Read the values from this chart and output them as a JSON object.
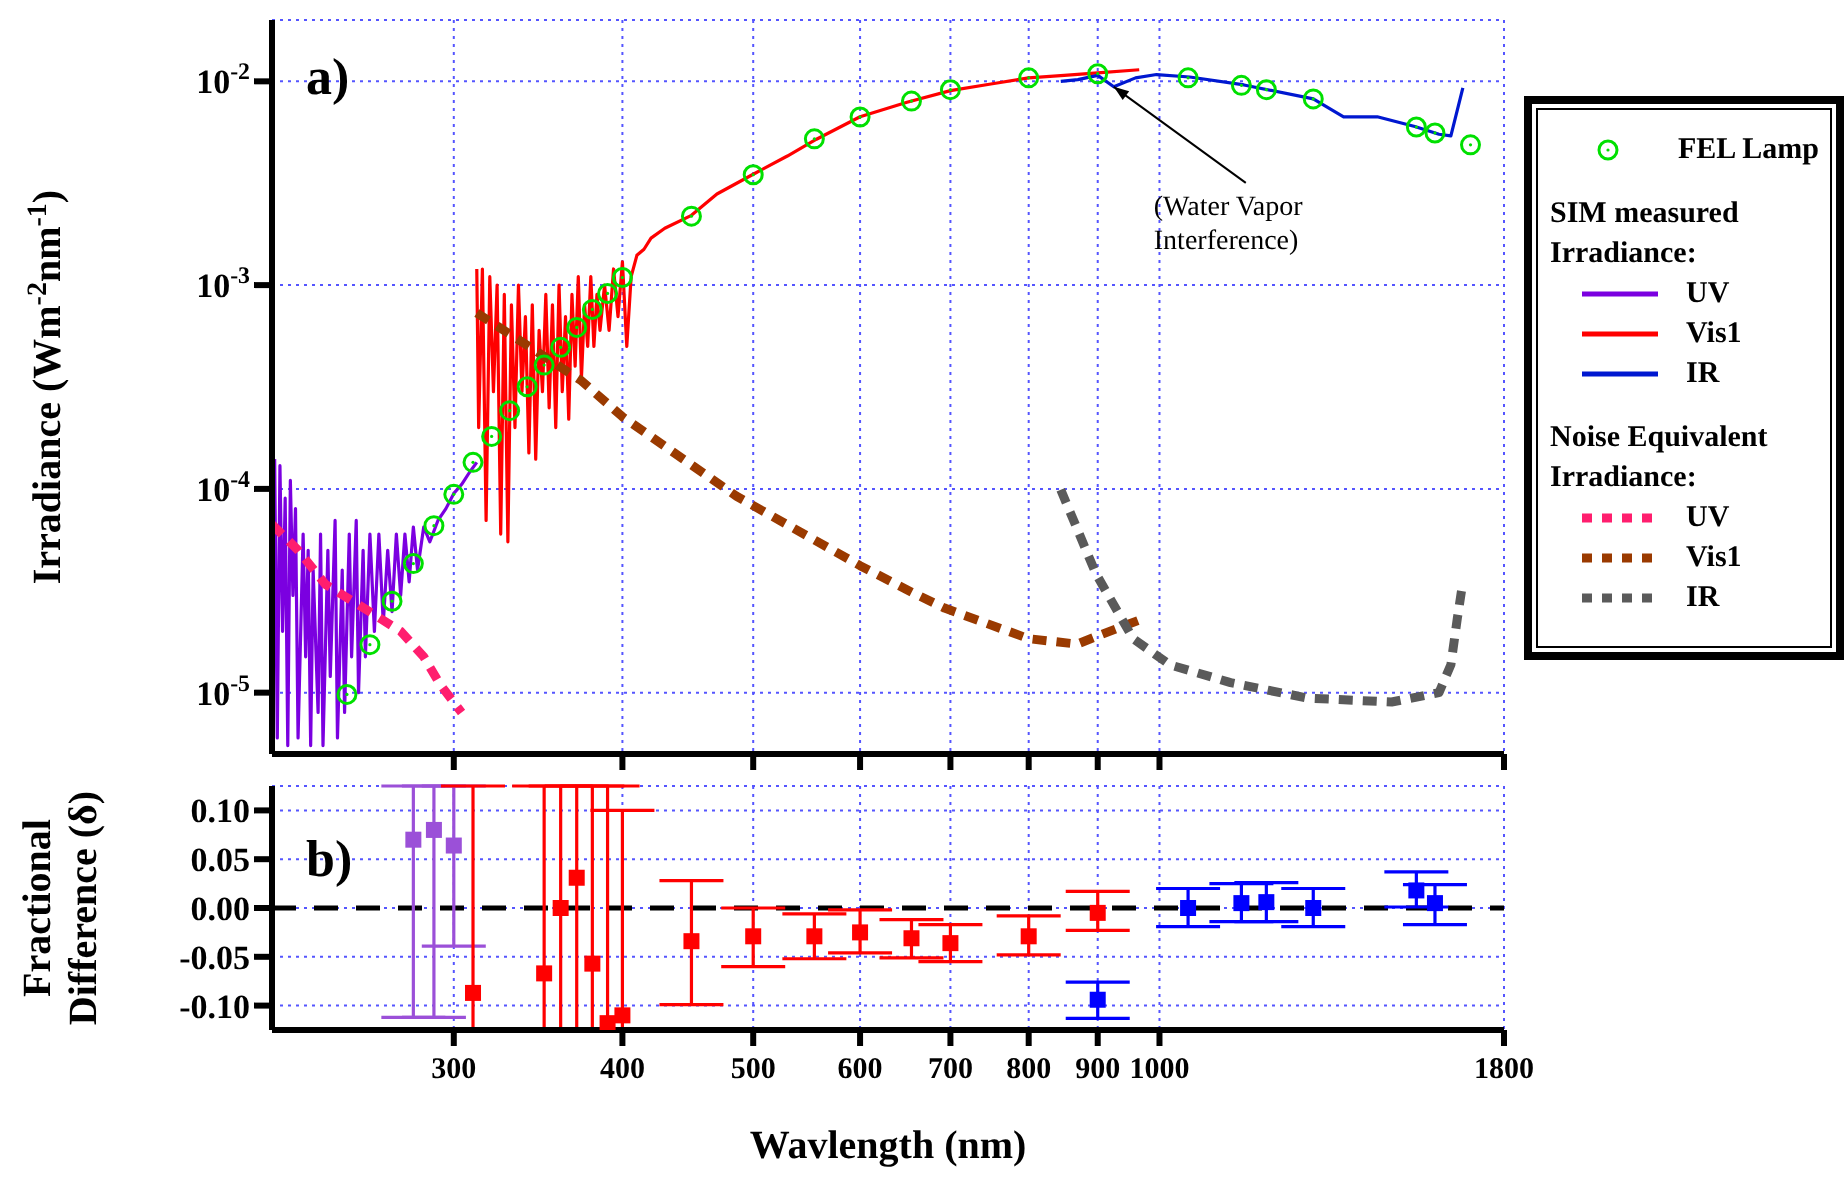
{
  "chart_data": [
    {
      "type": "line",
      "title": "a)",
      "ylabel": "Irradiance (Wm$^{-2}$nm$^{-1}$)",
      "log": "xy",
      "grid": true,
      "legend": "right",
      "tick_labels": "y",
      "xlim": [
        220,
        1800
      ],
      "xticks": [
        300,
        400,
        500,
        600,
        700,
        800,
        900,
        1000,
        1800
      ],
      "ylim": [
        5e-06,
        0.02
      ],
      "yticks": [
        {
          "value": 1e-05,
          "label": "10$^{-5}$"
        },
        {
          "value": 0.0001,
          "label": "10$^{-4}$"
        },
        {
          "value": 0.001,
          "label": "10$^{-3}$"
        },
        {
          "value": 0.01,
          "label": "10$^{-2}$"
        }
      ],
      "annotations": [
        {
          "text": "(Water Vapor\nInterference)",
          "x": 925,
          "y": 0.0094
        },
        "SIM measured\nIrradiance:",
        "Noise Equivalent\nIrradiance:"
      ],
      "series": [
        {
          "name": "FEL Lamp",
          "type": "scatter",
          "marker": "circle",
          "color": "#00e000",
          "x": [
            250,
            260,
            270,
            280,
            290,
            300,
            310,
            320,
            330,
            340,
            350,
            360,
            370,
            380,
            390,
            400,
            450,
            500,
            555,
            600,
            655,
            700,
            800,
            900,
            1050,
            1150,
            1200,
            1300,
            1550,
            1600,
            1700
          ],
          "values": [
            9.8e-06,
            1.72e-05,
            2.81e-05,
            4.3e-05,
            6.6e-05,
            9.4e-05,
            0.000135,
            0.000181,
            0.000242,
            0.000317,
            0.000405,
            0.000495,
            0.00062,
            0.00076,
            0.00091,
            0.00109,
            0.00218,
            0.00348,
            0.00522,
            0.00668,
            0.008,
            0.0091,
            0.0104,
            0.0109,
            0.0104,
            0.00956,
            0.0091,
            0.0082,
            0.00597,
            0.00558,
            0.00488
          ]
        },
        {
          "name": "UV",
          "color": "#7b00e0",
          "line_style": "solid",
          "x": [
            221,
            222,
            223,
            224,
            225,
            226,
            227,
            228,
            229,
            230,
            232,
            233,
            234,
            235,
            236,
            238,
            239,
            240,
            242,
            243,
            245,
            246,
            248,
            249,
            251,
            252,
            254,
            255,
            257,
            258,
            260,
            262,
            264,
            266,
            268,
            270,
            272,
            274,
            276,
            278,
            280,
            282,
            285,
            288,
            292,
            296,
            300,
            304,
            308,
            312
          ],
          "values": [
            0.00014,
            6e-06,
            0.00013,
            2e-05,
            9e-05,
            5.5e-06,
            0.00011,
            3e-05,
            8e-05,
            6e-06,
            6e-05,
            1.5e-05,
            5e-05,
            5.5e-06,
            4e-05,
            8e-06,
            6e-05,
            5.5e-06,
            5e-05,
            1.2e-05,
            7e-05,
            6e-06,
            4e-05,
            8e-06,
            6e-05,
            1.5e-05,
            7e-05,
            1e-05,
            5e-05,
            1.5e-05,
            6e-05,
            2e-05,
            6e-05,
            2.2e-05,
            5e-05,
            2.5e-05,
            6e-05,
            3e-05,
            6e-05,
            3.5e-05,
            6.5e-05,
            4e-05,
            6.5e-05,
            5.5e-05,
            7e-05,
            8e-05,
            9.5e-05,
            0.000105,
            0.00012,
            0.000135
          ]
        },
        {
          "name": "Vis1",
          "color": "#ff0000",
          "line_style": "solid",
          "x": [
            312,
            313,
            315,
            317,
            319,
            321,
            323,
            325,
            327,
            329,
            331,
            333,
            335,
            337,
            339,
            341,
            343,
            345,
            347,
            349,
            351,
            353,
            355,
            357,
            359,
            361,
            363,
            365,
            367,
            369,
            371,
            373,
            375,
            377,
            379,
            381,
            383,
            385,
            388,
            391,
            394,
            397,
            400,
            403,
            406,
            410,
            415,
            420,
            430,
            450,
            470,
            500,
            530,
            557,
            600,
            650,
            700,
            750,
            800,
            850,
            900,
            966
          ],
          "values": [
            0.0012,
            0.0002,
            0.0012,
            7e-05,
            0.0011,
            0.0003,
            0.001,
            6e-05,
            0.0009,
            5.5e-05,
            0.0008,
            0.0002,
            0.001,
            0.0003,
            0.0007,
            0.00015,
            0.0008,
            0.00014,
            0.0006,
            0.0003,
            0.0009,
            0.00025,
            0.0008,
            0.0002,
            0.001,
            0.0003,
            0.0007,
            0.00022,
            0.0009,
            0.0004,
            0.0011,
            0.00035,
            0.0008,
            0.0005,
            0.0011,
            0.0005,
            0.0009,
            0.0006,
            0.001,
            0.0006,
            0.0012,
            0.0007,
            0.0013,
            0.0005,
            0.0011,
            0.0014,
            0.0015,
            0.0017,
            0.0019,
            0.0022,
            0.0028,
            0.0035,
            0.0043,
            0.0052,
            0.0067,
            0.0079,
            0.009,
            0.0097,
            0.0104,
            0.0107,
            0.011,
            0.0114
          ]
        },
        {
          "name": "IR",
          "color": "#0018d0",
          "line_style": "solid",
          "x": [
            845,
            870,
            900,
            925,
            960,
            995,
            1053,
            1155,
            1300,
            1369,
            1450,
            1546,
            1611,
            1644,
            1678
          ],
          "values": [
            0.01,
            0.0102,
            0.0107,
            0.0094,
            0.0104,
            0.0108,
            0.0105,
            0.0096,
            0.0082,
            0.0067,
            0.0067,
            0.006,
            0.0055,
            0.0054,
            0.0093
          ]
        },
        {
          "name": "UV",
          "color": "#ff1e6e",
          "line_style": "dashed",
          "x": [
            220,
            230,
            241,
            255,
            265,
            274,
            285,
            293,
            304
          ],
          "values": [
            6.7e-05,
            5e-05,
            3.4e-05,
            2.7e-05,
            2.3e-05,
            2e-05,
            1.5e-05,
            1.1e-05,
            8e-06
          ]
        },
        {
          "name": "Vis1",
          "color": "#9a3a00",
          "line_style": "dashed",
          "x": [
            312,
            340,
            373,
            400,
            486,
            600,
            656,
            693,
            800,
            869,
            900,
            966
          ],
          "values": [
            0.00073,
            0.000507,
            0.000339,
            0.000226,
            9.2e-05,
            4.2e-05,
            3.1e-05,
            2.6e-05,
            1.84e-05,
            1.73e-05,
            1.9e-05,
            2.27e-05
          ]
        },
        {
          "name": "IR",
          "color": "#5a5a5a",
          "line_style": "dashed",
          "x": [
            845,
            897,
            956,
            1018,
            1129,
            1288,
            1486,
            1611,
            1644,
            1662,
            1678
          ],
          "values": [
            9.9e-05,
            3.85e-05,
            1.84e-05,
            1.37e-05,
            1.12e-05,
            9.4e-06,
            9e-06,
            1e-05,
            1.37e-05,
            2.3e-05,
            3.5e-05
          ]
        }
      ]
    },
    {
      "type": "scatter",
      "title": "b)",
      "xlabel": "Wavlength (nm)",
      "ylabel": "Fractional\nDifference (δ)",
      "log": "x",
      "grid": true,
      "marker": "square",
      "xlim": [
        220,
        1800
      ],
      "xticks": [
        300,
        400,
        500,
        600,
        700,
        800,
        900,
        1000,
        1800
      ],
      "ylim": [
        -0.125,
        0.125
      ],
      "yticks": [
        {
          "value": -0.1,
          "label": "-0.10"
        },
        {
          "value": -0.05,
          "label": "-0.05"
        },
        {
          "value": 0,
          "label": "0.00"
        },
        {
          "value": 0.05,
          "label": "0.05"
        },
        {
          "value": 0.1,
          "label": "0.10"
        }
      ],
      "ref_lines": [
        {
          "axis": "y",
          "value": 0,
          "color": "#000000",
          "line_style": "dashed"
        }
      ],
      "series": [
        {
          "color": "#9b50d8",
          "x": [
            280,
            290,
            300
          ],
          "values": [
            0.07,
            0.08,
            0.064
          ],
          "errors": [
            [
              -0.112,
              0.125
            ],
            [
              -0.112,
              0.125
            ],
            [
              -0.039,
              0.125
            ]
          ]
        },
        {
          "color": "#ff0000",
          "x": [
            310,
            350,
            360,
            370,
            380,
            390,
            400,
            450,
            500,
            555,
            600,
            655,
            700,
            800,
            900
          ],
          "values": [
            -0.087,
            -0.067,
            0.0,
            0.031,
            -0.057,
            -0.118,
            -0.11,
            -0.034,
            -0.029,
            -0.029,
            -0.025,
            -0.031,
            -0.036,
            -0.029,
            -0.005
          ],
          "errors": [
            [
              -0.125,
              0.125
            ],
            [
              -0.125,
              0.125
            ],
            [
              -0.125,
              0.125
            ],
            [
              -0.125,
              0.125
            ],
            [
              -0.125,
              0.125
            ],
            [
              -0.125,
              0.125
            ],
            [
              -0.125,
              0.1
            ],
            [
              -0.099,
              0.028
            ],
            [
              -0.06,
              0.0
            ],
            [
              -0.052,
              -0.006
            ],
            [
              -0.046,
              -0.002
            ],
            [
              -0.051,
              -0.012
            ],
            [
              -0.055,
              -0.017
            ],
            [
              -0.048,
              -0.008
            ],
            [
              -0.023,
              0.017
            ]
          ]
        },
        {
          "color": "#0000ff",
          "x": [
            900,
            1050,
            1150,
            1200,
            1300,
            1550,
            1600
          ],
          "values": [
            -0.094,
            0.0,
            0.005,
            0.006,
            0.0,
            0.018,
            0.005
          ],
          "errors": [
            [
              -0.113,
              -0.076
            ],
            [
              -0.019,
              0.02
            ],
            [
              -0.014,
              0.025
            ],
            [
              -0.014,
              0.026
            ],
            [
              -0.019,
              0.02
            ],
            [
              0.001,
              0.037
            ],
            [
              -0.017,
              0.024
            ]
          ]
        }
      ]
    }
  ]
}
